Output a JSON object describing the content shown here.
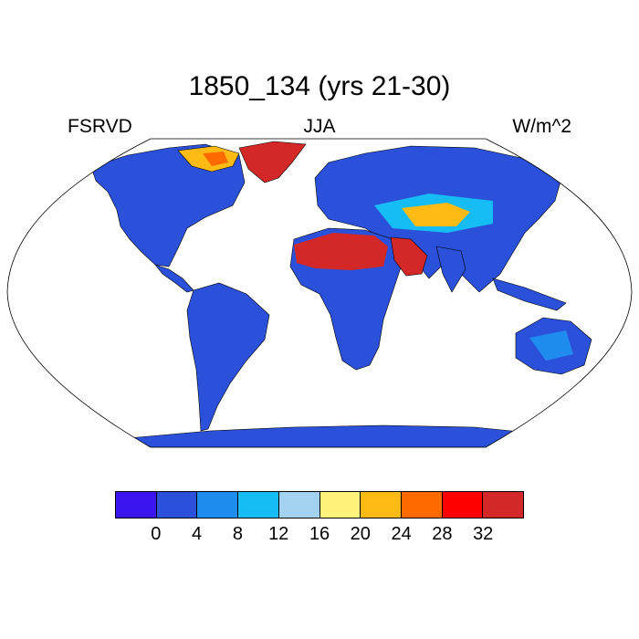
{
  "header": {
    "title": "1850_134 (yrs 21-30)",
    "left": "FSRVD",
    "center": "JJA",
    "right": "W/m^2"
  },
  "colors": {
    "ocean": "#ffffff",
    "land_low": "#2b50d9",
    "land_mid": "#1f8cf0",
    "land_light": "#16bcf4",
    "land_pale": "#a2d2f0",
    "yellow": "#fff27a",
    "orange": "#ffbb14",
    "dark_orange": "#ff6a00",
    "red": "#ff0000",
    "dark_red": "#d42828"
  },
  "colorbar": {
    "colors": [
      "#3c14f0",
      "#2b50d9",
      "#1f8cf0",
      "#16bcf4",
      "#a2d2f0",
      "#fff27a",
      "#ffbb14",
      "#ff6a00",
      "#ff0000",
      "#d42828"
    ],
    "labels": [
      "0",
      "4",
      "8",
      "12",
      "16",
      "20",
      "24",
      "28",
      "32"
    ]
  }
}
